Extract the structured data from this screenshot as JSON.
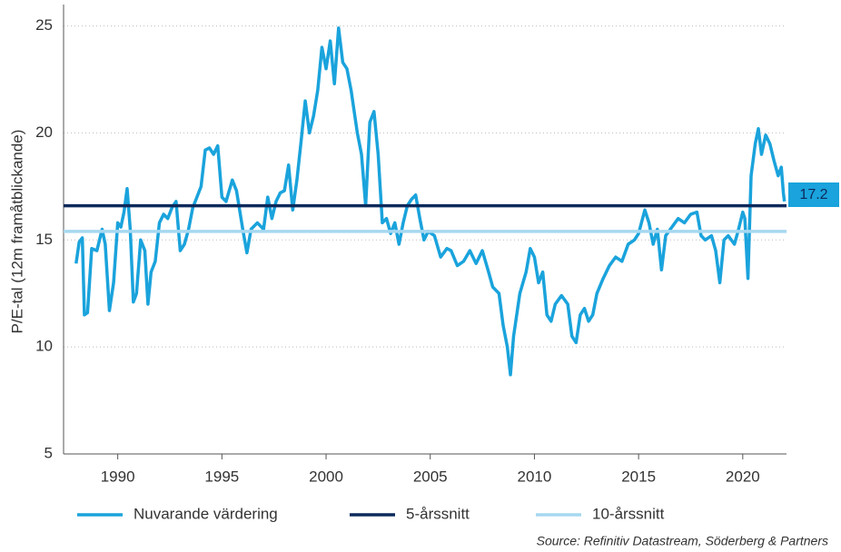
{
  "chart_data": {
    "type": "line",
    "y_label": "P/E-tal (12m framåtblickande)",
    "source": "Source: Refinitiv Datastream, Söderberg & Partners",
    "annotation": "17.2",
    "xlim": [
      1987.4,
      2022.1
    ],
    "ylim": [
      5,
      26
    ],
    "xticks": [
      1990,
      1995,
      2000,
      2005,
      2010,
      2015,
      2020
    ],
    "yticks": [
      5,
      10,
      15,
      20,
      25
    ],
    "grid": true,
    "series": [
      {
        "name": "Nuvarande värdering",
        "color": "#1aa3dc",
        "x": [
          1988.0,
          1988.15,
          1988.3,
          1988.4,
          1988.55,
          1988.75,
          1989.0,
          1989.25,
          1989.4,
          1989.6,
          1989.8,
          1990.0,
          1990.15,
          1990.3,
          1990.45,
          1990.6,
          1990.75,
          1990.9,
          1991.1,
          1991.3,
          1991.45,
          1991.6,
          1991.8,
          1992.0,
          1992.2,
          1992.4,
          1992.6,
          1992.8,
          1993.0,
          1993.2,
          1993.4,
          1993.6,
          1993.8,
          1994.0,
          1994.2,
          1994.4,
          1994.6,
          1994.8,
          1995.0,
          1995.2,
          1995.5,
          1995.7,
          1996.0,
          1996.2,
          1996.4,
          1996.7,
          1997.0,
          1997.2,
          1997.4,
          1997.6,
          1997.8,
          1998.0,
          1998.2,
          1998.4,
          1998.6,
          1998.8,
          1999.0,
          1999.2,
          1999.4,
          1999.6,
          1999.8,
          2000.0,
          2000.2,
          2000.4,
          2000.6,
          2000.8,
          2001.0,
          2001.2,
          2001.5,
          2001.7,
          2001.9,
          2002.1,
          2002.3,
          2002.5,
          2002.7,
          2002.9,
          2003.1,
          2003.3,
          2003.5,
          2003.7,
          2003.9,
          2004.1,
          2004.3,
          2004.5,
          2004.7,
          2004.9,
          2005.2,
          2005.5,
          2005.8,
          2006.0,
          2006.3,
          2006.6,
          2006.9,
          2007.2,
          2007.5,
          2007.8,
          2008.0,
          2008.3,
          2008.5,
          2008.7,
          2008.85,
          2009.0,
          2009.3,
          2009.6,
          2009.8,
          2010.0,
          2010.2,
          2010.4,
          2010.6,
          2010.8,
          2011.0,
          2011.3,
          2011.6,
          2011.8,
          2012.0,
          2012.2,
          2012.4,
          2012.6,
          2012.8,
          2013.0,
          2013.3,
          2013.6,
          2013.9,
          2014.2,
          2014.5,
          2014.8,
          2015.0,
          2015.3,
          2015.5,
          2015.7,
          2015.9,
          2016.1,
          2016.3,
          2016.6,
          2016.9,
          2017.2,
          2017.5,
          2017.8,
          2018.0,
          2018.2,
          2018.5,
          2018.7,
          2018.9,
          2019.1,
          2019.3,
          2019.6,
          2019.8,
          2020.0,
          2020.1,
          2020.25,
          2020.4,
          2020.6,
          2020.75,
          2020.9,
          2021.1,
          2021.3,
          2021.5,
          2021.7,
          2021.85,
          2021.95,
          2022.0
        ],
        "values": [
          13.9,
          14.9,
          15.1,
          11.5,
          11.6,
          14.6,
          14.5,
          15.5,
          14.8,
          11.7,
          13.0,
          15.8,
          15.6,
          16.3,
          17.4,
          15.5,
          12.1,
          12.5,
          15.0,
          14.5,
          12.0,
          13.5,
          14.0,
          15.8,
          16.2,
          16.0,
          16.5,
          16.8,
          14.5,
          14.8,
          15.5,
          16.5,
          17.0,
          17.5,
          19.2,
          19.3,
          19.0,
          19.4,
          17.0,
          16.8,
          17.8,
          17.3,
          15.5,
          14.4,
          15.5,
          15.8,
          15.5,
          17.0,
          16.0,
          16.8,
          17.2,
          17.3,
          18.5,
          16.4,
          17.8,
          19.6,
          21.5,
          20.0,
          20.8,
          22.0,
          24.0,
          23.0,
          24.3,
          22.3,
          24.9,
          23.3,
          23.0,
          22.0,
          20.0,
          19.0,
          16.6,
          20.5,
          21.0,
          19.0,
          15.8,
          16.0,
          15.3,
          15.8,
          14.8,
          15.8,
          16.6,
          16.9,
          17.1,
          16.0,
          15.0,
          15.4,
          15.2,
          14.2,
          14.6,
          14.5,
          13.8,
          14.0,
          14.5,
          13.9,
          14.5,
          13.5,
          12.8,
          12.5,
          11.0,
          10.0,
          8.7,
          10.5,
          12.5,
          13.5,
          14.6,
          14.2,
          13.0,
          13.5,
          11.5,
          11.2,
          12.0,
          12.4,
          12.0,
          10.5,
          10.2,
          11.5,
          11.8,
          11.2,
          11.5,
          12.5,
          13.2,
          13.8,
          14.2,
          14.0,
          14.8,
          15.0,
          15.3,
          16.4,
          15.8,
          14.8,
          15.5,
          13.6,
          15.2,
          15.6,
          16.0,
          15.8,
          16.2,
          16.3,
          15.2,
          15.0,
          15.2,
          14.5,
          13.0,
          15.0,
          15.2,
          14.8,
          15.5,
          16.3,
          16.0,
          13.2,
          18.0,
          19.5,
          20.2,
          19.0,
          19.9,
          19.5,
          18.7,
          18.0,
          18.4,
          17.2,
          16.8
        ]
      },
      {
        "name": "5-årssnitt",
        "color": "#0d2a5c",
        "value": 16.6
      },
      {
        "name": "10-årssnitt",
        "color": "#a6d8f0",
        "value": 15.4
      }
    ]
  }
}
